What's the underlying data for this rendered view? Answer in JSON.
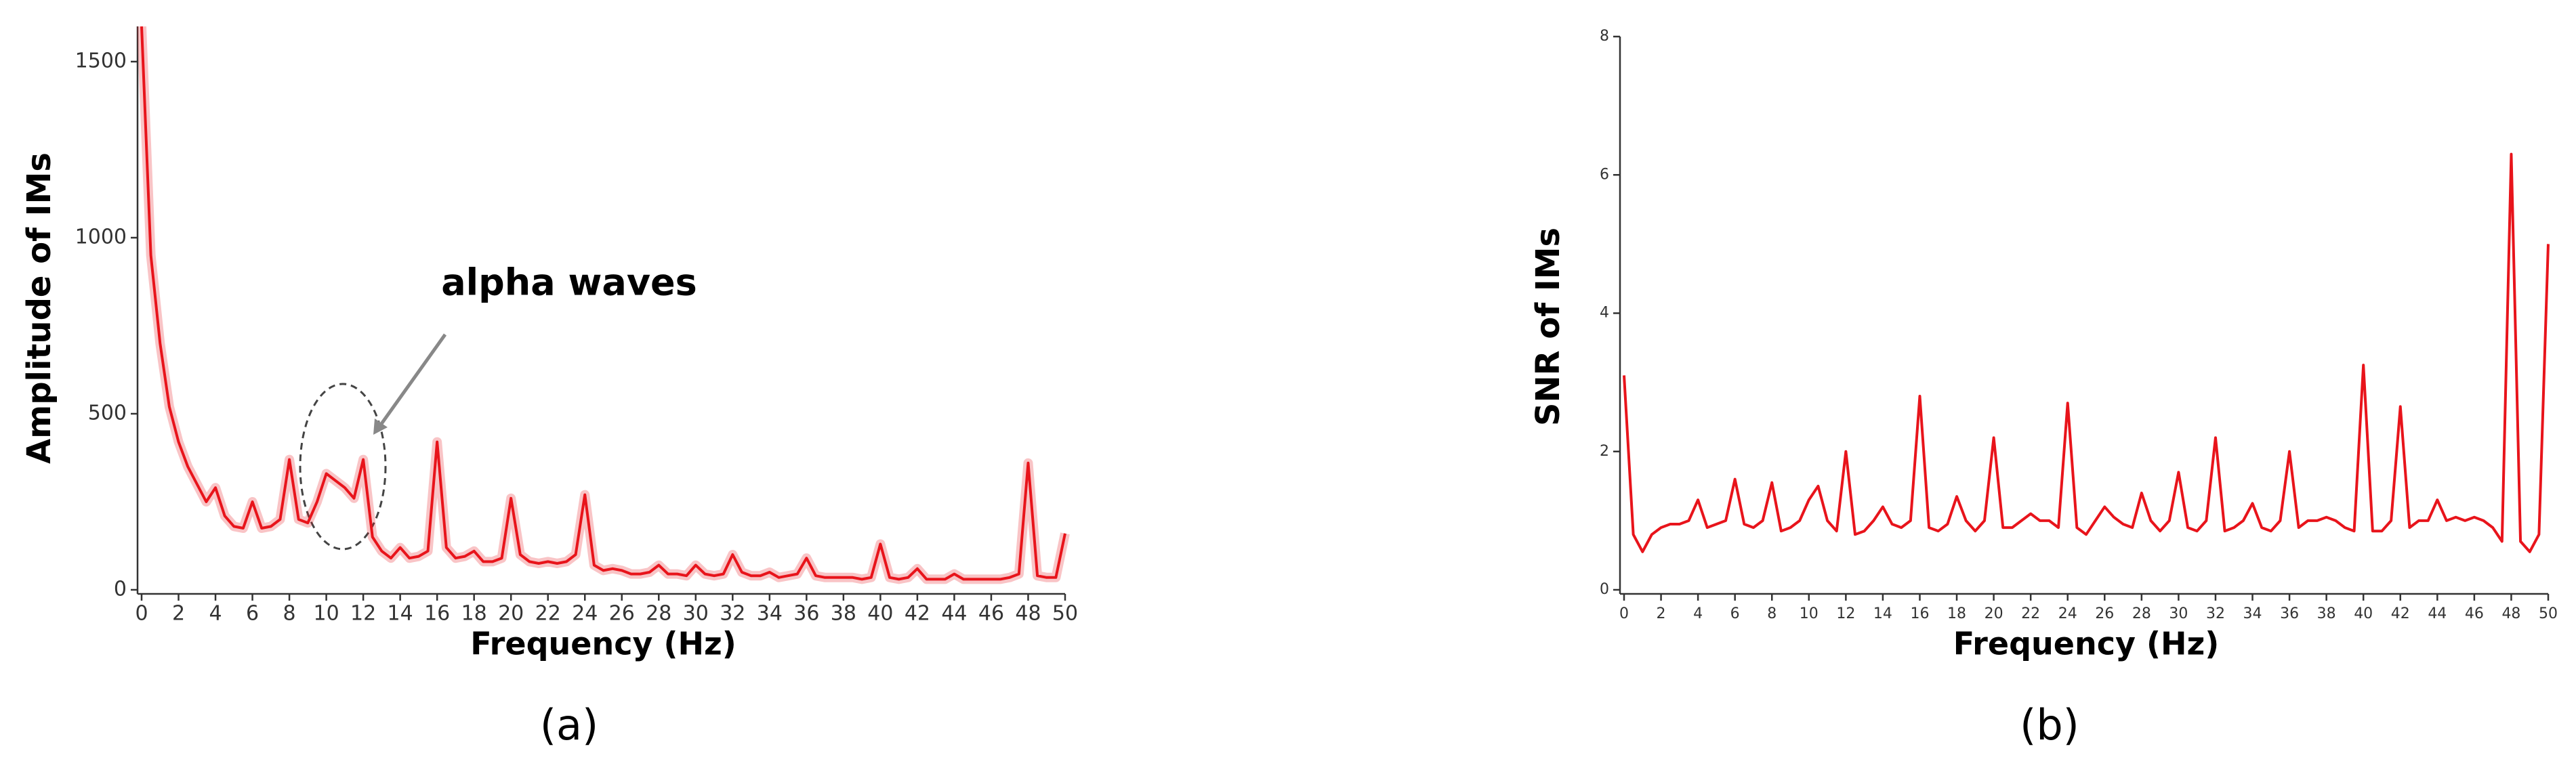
{
  "charts": [
    {
      "chart_data": {
        "type": "line",
        "panel_label": "(a)",
        "xlabel": "Frequency (Hz)",
        "ylabel": "Amplitude of IMs",
        "annotation": "alpha waves",
        "color": "#e8141b",
        "xlim": [
          0,
          50
        ],
        "ylim": [
          0,
          1600
        ],
        "xticks": [
          0,
          2,
          4,
          6,
          8,
          10,
          12,
          14,
          16,
          18,
          20,
          22,
          24,
          26,
          28,
          30,
          32,
          34,
          36,
          38,
          40,
          42,
          44,
          46,
          48,
          50
        ],
        "yticks": [
          0,
          500,
          1000,
          1500
        ],
        "x": [
          0,
          0.5,
          1,
          1.5,
          2,
          2.5,
          3,
          3.5,
          4,
          4.5,
          5,
          5.5,
          6,
          6.5,
          7,
          7.5,
          8,
          8.5,
          9,
          9.5,
          10,
          10.5,
          11,
          11.5,
          12,
          12.5,
          13,
          13.5,
          14,
          14.5,
          15,
          15.5,
          16,
          16.5,
          17,
          17.5,
          18,
          18.5,
          19,
          19.5,
          20,
          20.5,
          21,
          21.5,
          22,
          22.5,
          23,
          23.5,
          24,
          24.5,
          25,
          25.5,
          26,
          26.5,
          27,
          27.5,
          28,
          28.5,
          29,
          29.5,
          30,
          30.5,
          31,
          31.5,
          32,
          32.5,
          33,
          33.5,
          34,
          34.5,
          35,
          35.5,
          36,
          36.5,
          37,
          37.5,
          38,
          38.5,
          39,
          39.5,
          40,
          40.5,
          41,
          41.5,
          42,
          42.5,
          43,
          43.5,
          44,
          44.5,
          45,
          45.5,
          46,
          46.5,
          47,
          47.5,
          48,
          48.5,
          49,
          49.5,
          50
        ],
        "values": [
          1600,
          950,
          700,
          520,
          420,
          350,
          300,
          250,
          290,
          210,
          180,
          175,
          250,
          175,
          180,
          200,
          370,
          200,
          190,
          250,
          330,
          310,
          290,
          260,
          370,
          150,
          110,
          90,
          120,
          90,
          95,
          110,
          420,
          120,
          90,
          95,
          110,
          80,
          80,
          90,
          260,
          100,
          80,
          75,
          80,
          75,
          80,
          100,
          270,
          70,
          55,
          60,
          55,
          45,
          45,
          50,
          70,
          45,
          45,
          40,
          70,
          45,
          40,
          45,
          100,
          50,
          40,
          40,
          50,
          35,
          40,
          45,
          90,
          40,
          35,
          35,
          35,
          35,
          30,
          35,
          130,
          35,
          30,
          35,
          60,
          30,
          30,
          30,
          45,
          30,
          30,
          30,
          30,
          30,
          35,
          45,
          360,
          40,
          35,
          35,
          160
        ]
      }
    },
    {
      "chart_data": {
        "type": "line",
        "panel_label": "(b)",
        "xlabel": "Frequency (Hz)",
        "ylabel": "SNR of IMs",
        "color": "#e8141b",
        "xlim": [
          0,
          50
        ],
        "ylim": [
          0,
          8
        ],
        "xticks": [
          0,
          2,
          4,
          6,
          8,
          10,
          12,
          14,
          16,
          18,
          20,
          22,
          24,
          26,
          28,
          30,
          32,
          34,
          36,
          38,
          40,
          42,
          44,
          46,
          48,
          50
        ],
        "yticks": [
          0,
          2,
          4,
          6,
          8
        ],
        "x": [
          0,
          0.5,
          1,
          1.5,
          2,
          2.5,
          3,
          3.5,
          4,
          4.5,
          5,
          5.5,
          6,
          6.5,
          7,
          7.5,
          8,
          8.5,
          9,
          9.5,
          10,
          10.5,
          11,
          11.5,
          12,
          12.5,
          13,
          13.5,
          14,
          14.5,
          15,
          15.5,
          16,
          16.5,
          17,
          17.5,
          18,
          18.5,
          19,
          19.5,
          20,
          20.5,
          21,
          21.5,
          22,
          22.5,
          23,
          23.5,
          24,
          24.5,
          25,
          25.5,
          26,
          26.5,
          27,
          27.5,
          28,
          28.5,
          29,
          29.5,
          30,
          30.5,
          31,
          31.5,
          32,
          32.5,
          33,
          33.5,
          34,
          34.5,
          35,
          35.5,
          36,
          36.5,
          37,
          37.5,
          38,
          38.5,
          39,
          39.5,
          40,
          40.5,
          41,
          41.5,
          42,
          42.5,
          43,
          43.5,
          44,
          44.5,
          45,
          45.5,
          46,
          46.5,
          47,
          47.5,
          48,
          48.5,
          49,
          49.5,
          50
        ],
        "values": [
          3.1,
          0.8,
          0.55,
          0.8,
          0.9,
          0.95,
          0.95,
          1.0,
          1.3,
          0.9,
          0.95,
          1.0,
          1.6,
          0.95,
          0.9,
          1.0,
          1.55,
          0.85,
          0.9,
          1.0,
          1.3,
          1.5,
          1.0,
          0.85,
          2.0,
          0.8,
          0.85,
          1.0,
          1.2,
          0.95,
          0.9,
          1.0,
          2.8,
          0.9,
          0.85,
          0.95,
          1.35,
          1.0,
          0.85,
          1.0,
          2.2,
          0.9,
          0.9,
          1.0,
          1.1,
          1.0,
          1.0,
          0.9,
          2.7,
          0.9,
          0.8,
          1.0,
          1.2,
          1.05,
          0.95,
          0.9,
          1.4,
          1.0,
          0.85,
          1.0,
          1.7,
          0.9,
          0.85,
          1.0,
          2.2,
          0.85,
          0.9,
          1.0,
          1.25,
          0.9,
          0.85,
          1.0,
          2.0,
          0.9,
          1.0,
          1.0,
          1.05,
          1.0,
          0.9,
          0.85,
          3.25,
          0.85,
          0.85,
          1.0,
          2.65,
          0.9,
          1.0,
          1.0,
          1.3,
          1.0,
          1.05,
          1.0,
          1.05,
          1.0,
          0.9,
          0.7,
          6.3,
          0.7,
          0.55,
          0.8,
          5.0
        ]
      }
    }
  ]
}
